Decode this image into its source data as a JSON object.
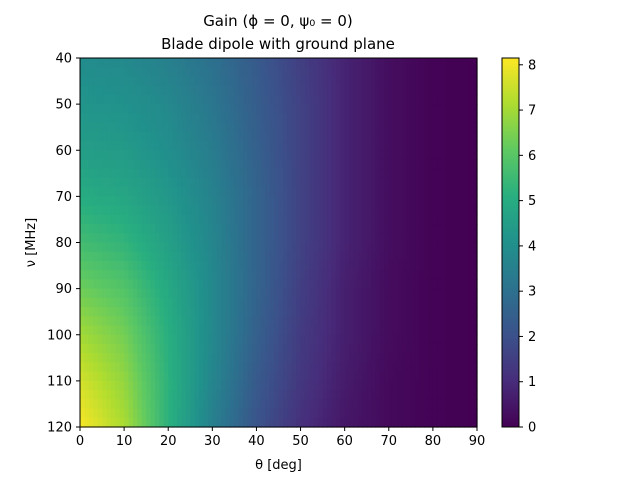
{
  "chart_data": {
    "type": "heatmap",
    "title": "Gain (ϕ = 0, ψ₀ = 0)",
    "subtitle": "Blade dipole with ground plane",
    "xlabel": "θ [deg]",
    "ylabel": "ν [MHz]",
    "xlim": [
      0,
      90
    ],
    "ylim": [
      40,
      120
    ],
    "y_inverted": true,
    "x_ticks": [
      0,
      10,
      20,
      30,
      40,
      50,
      60,
      70,
      80,
      90
    ],
    "y_ticks": [
      40,
      50,
      60,
      70,
      80,
      90,
      100,
      110,
      120
    ],
    "colormap": "viridis",
    "colorbar": {
      "min": 0,
      "max": 8.15,
      "ticks": [
        0,
        1,
        2,
        3,
        4,
        5,
        6,
        7,
        8
      ]
    },
    "grid": false,
    "theta_deg": [
      0,
      10,
      20,
      30,
      40,
      50,
      60,
      70,
      80,
      90
    ],
    "frequency_mhz": [
      40,
      50,
      60,
      70,
      80,
      90,
      100,
      110,
      120
    ],
    "gain": [
      [
        3.9,
        3.8,
        3.5,
        3.0,
        2.3,
        1.5,
        0.8,
        0.3,
        0.05,
        0.0
      ],
      [
        4.2,
        4.1,
        3.8,
        3.2,
        2.4,
        1.6,
        0.8,
        0.3,
        0.05,
        0.0
      ],
      [
        4.5,
        4.4,
        4.0,
        3.4,
        2.5,
        1.6,
        0.8,
        0.3,
        0.05,
        0.0
      ],
      [
        5.0,
        4.8,
        4.3,
        3.6,
        2.6,
        1.6,
        0.8,
        0.3,
        0.05,
        0.0
      ],
      [
        5.6,
        5.3,
        4.6,
        3.7,
        2.6,
        1.6,
        0.8,
        0.3,
        0.05,
        0.0
      ],
      [
        6.3,
        5.9,
        4.9,
        3.8,
        2.6,
        1.5,
        0.7,
        0.25,
        0.05,
        0.0
      ],
      [
        7.0,
        6.4,
        5.1,
        3.8,
        2.5,
        1.4,
        0.7,
        0.25,
        0.05,
        0.0
      ],
      [
        7.6,
        6.8,
        5.2,
        3.7,
        2.3,
        1.3,
        0.6,
        0.2,
        0.05,
        0.0
      ],
      [
        8.1,
        7.1,
        5.2,
        3.5,
        2.1,
        1.1,
        0.5,
        0.2,
        0.05,
        0.0
      ]
    ]
  }
}
